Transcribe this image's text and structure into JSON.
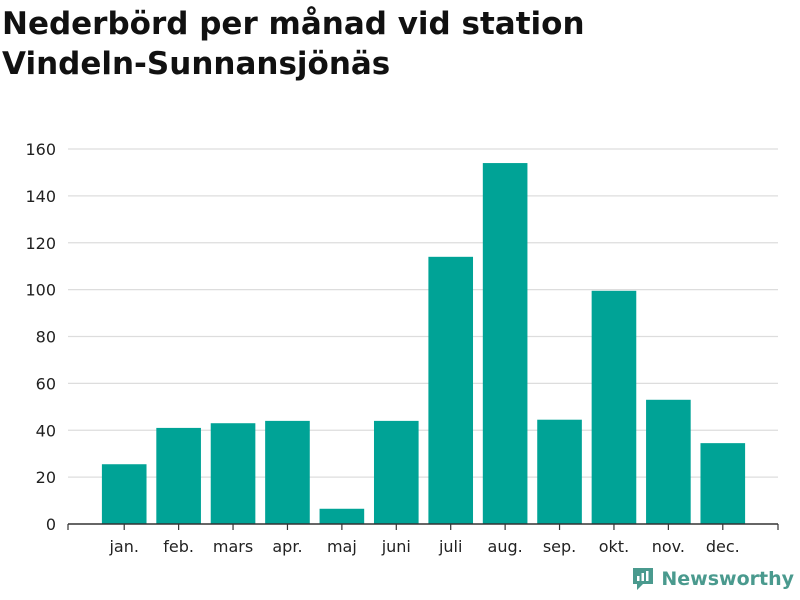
{
  "page": {
    "title_line1": "Nederbörd per månad vid station",
    "title_line2": "Vindeln-Sunnansjönäs",
    "brand": "Newsworthy"
  },
  "colors": {
    "bar": "#00a396",
    "grid": "#dddddd",
    "axis": "#333333",
    "text": "#222222",
    "brand": "#4a9a8e"
  },
  "chart_data": {
    "type": "bar",
    "categories": [
      "jan.",
      "feb.",
      "mars",
      "apr.",
      "maj",
      "juni",
      "juli",
      "aug.",
      "sep.",
      "okt.",
      "nov.",
      "dec."
    ],
    "values": [
      25.5,
      41,
      43,
      44,
      6.5,
      44,
      114,
      154,
      44.5,
      99.5,
      53,
      34.5
    ],
    "ylim": [
      0,
      160
    ],
    "yticks": [
      0,
      20,
      40,
      60,
      80,
      100,
      120,
      140,
      160
    ],
    "grid": true,
    "xlabel": "",
    "ylabel": ""
  }
}
